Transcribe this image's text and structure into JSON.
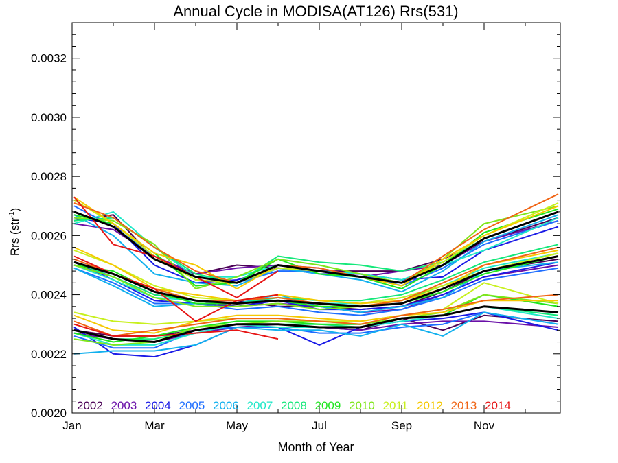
{
  "chart_data": {
    "type": "line",
    "title": "Annual Cycle in MODISA(AT126) Rrs(531)",
    "xlabel": "Month of Year",
    "ylabel_main": "Rrs (str",
    "ylabel_sup": "-1",
    "ylabel_close": ")",
    "xlim": [
      0.0,
      11.85
    ],
    "ylim": [
      0.002,
      0.00332
    ],
    "x_ticks": [
      {
        "value": 0,
        "label": "Jan"
      },
      {
        "value": 2,
        "label": "Mar"
      },
      {
        "value": 4,
        "label": "May"
      },
      {
        "value": 6,
        "label": "Jul"
      },
      {
        "value": 8,
        "label": "Sep"
      },
      {
        "value": 10,
        "label": "Nov"
      }
    ],
    "y_ticks": [
      {
        "value": 0.002,
        "label": "0.0020"
      },
      {
        "value": 0.0022,
        "label": "0.0022"
      },
      {
        "value": 0.0024,
        "label": "0.0024"
      },
      {
        "value": 0.0026,
        "label": "0.0026"
      },
      {
        "value": 0.0028,
        "label": "0.0028"
      },
      {
        "value": 0.003,
        "label": "0.0030"
      },
      {
        "value": 0.0032,
        "label": "0.0032"
      }
    ],
    "x": [
      0.05,
      1,
      2,
      3,
      4,
      5,
      6,
      7,
      8,
      9,
      10,
      11.8
    ],
    "legend": {
      "placement": "bottom-left inside plot"
    },
    "series": [
      {
        "name": "2002",
        "color": "#4a0055",
        "groups": [
          [
            0.00265,
            0.00267,
            0.00252,
            0.00247,
            0.0025,
            0.00249,
            0.00248,
            0.00248,
            0.00248,
            0.00252,
            0.00258,
            0.00266
          ],
          [
            0.0025,
            0.00246,
            0.0024,
            0.00238,
            0.00238,
            0.00236,
            0.00236,
            0.00235,
            0.00236,
            0.00241,
            0.00248,
            0.00252
          ],
          [
            0.00228,
            0.00226,
            0.00226,
            0.00228,
            0.0023,
            0.0023,
            0.00229,
            0.00228,
            0.00232,
            0.00228,
            0.00233,
            0.00231
          ]
        ]
      },
      {
        "name": "2003",
        "color": "#6a10a8",
        "groups": [
          [
            0.00264,
            0.00262,
            0.00253,
            0.00247,
            0.00249,
            0.0025,
            0.00249,
            0.00246,
            0.00248,
            0.0025,
            0.00258,
            0.00265
          ],
          [
            0.0025,
            0.00247,
            0.00242,
            0.00238,
            0.00236,
            0.00237,
            0.00236,
            0.00234,
            0.00235,
            0.0024,
            0.00246,
            0.0025
          ],
          [
            0.00227,
            0.00225,
            0.00224,
            0.00227,
            0.00229,
            0.0023,
            0.00229,
            0.00228,
            0.0023,
            0.00231,
            0.00231,
            0.00229
          ]
        ]
      },
      {
        "name": "2004",
        "color": "#1a1ae6",
        "groups": [
          [
            0.00266,
            0.00264,
            0.0025,
            0.00244,
            0.00245,
            0.00249,
            0.00247,
            0.00247,
            0.00245,
            0.00246,
            0.00255,
            0.00263
          ],
          [
            0.00251,
            0.00245,
            0.00238,
            0.00237,
            0.00236,
            0.00238,
            0.00235,
            0.00235,
            0.00236,
            0.0024,
            0.00246,
            0.00251
          ],
          [
            0.00229,
            0.0022,
            0.00219,
            0.00223,
            0.00229,
            0.00229,
            0.00223,
            0.00229,
            0.00231,
            0.00232,
            0.00234,
            0.00228
          ]
        ]
      },
      {
        "name": "2005",
        "color": "#1e6eff",
        "groups": [
          [
            0.0027,
            0.00263,
            0.00253,
            0.00245,
            0.00244,
            0.00248,
            0.00248,
            0.00247,
            0.00243,
            0.00249,
            0.00257,
            0.00265
          ],
          [
            0.00249,
            0.00244,
            0.00237,
            0.00237,
            0.00235,
            0.00236,
            0.00234,
            0.00233,
            0.00235,
            0.00239,
            0.00245,
            0.00249
          ],
          [
            0.00226,
            0.00222,
            0.00222,
            0.00228,
            0.00229,
            0.00229,
            0.00227,
            0.00227,
            0.00229,
            0.0023,
            0.00234,
            0.0023
          ]
        ]
      },
      {
        "name": "2006",
        "color": "#12b0ee",
        "groups": [
          [
            0.00267,
            0.0026,
            0.00247,
            0.00244,
            0.00243,
            0.00249,
            0.00247,
            0.00245,
            0.00241,
            0.00248,
            0.00258,
            0.00267
          ],
          [
            0.00249,
            0.00243,
            0.00236,
            0.00237,
            0.00237,
            0.0024,
            0.00236,
            0.00234,
            0.00236,
            0.00239,
            0.00248,
            0.00251
          ],
          [
            0.0022,
            0.00221,
            0.00221,
            0.00223,
            0.00229,
            0.00228,
            0.00228,
            0.00226,
            0.0023,
            0.00226,
            0.00234,
            0.0023
          ]
        ]
      },
      {
        "name": "2007",
        "color": "#20e8c8",
        "groups": [
          [
            0.00264,
            0.00268,
            0.00256,
            0.00246,
            0.00246,
            0.0025,
            0.00248,
            0.00247,
            0.00245,
            0.0025,
            0.00255,
            0.00266
          ],
          [
            0.0025,
            0.00245,
            0.00239,
            0.00238,
            0.00237,
            0.00239,
            0.00237,
            0.00237,
            0.00239,
            0.00243,
            0.00249,
            0.00254
          ],
          [
            0.00227,
            0.00223,
            0.00223,
            0.00227,
            0.0023,
            0.00229,
            0.00229,
            0.00229,
            0.00231,
            0.00233,
            0.00236,
            0.00232
          ]
        ]
      },
      {
        "name": "2008",
        "color": "#14e87a",
        "groups": [
          [
            0.00265,
            0.00266,
            0.00256,
            0.00247,
            0.00244,
            0.00253,
            0.00251,
            0.0025,
            0.00248,
            0.00251,
            0.00259,
            0.00268
          ],
          [
            0.00251,
            0.00246,
            0.0024,
            0.00238,
            0.00237,
            0.00239,
            0.00238,
            0.00238,
            0.0024,
            0.00245,
            0.00251,
            0.00257
          ],
          [
            0.00228,
            0.00225,
            0.00225,
            0.00228,
            0.0023,
            0.0023,
            0.0023,
            0.00229,
            0.00232,
            0.00233,
            0.00236,
            0.00233
          ]
        ]
      },
      {
        "name": "2009",
        "color": "#1ee61e",
        "groups": [
          [
            0.00267,
            0.00264,
            0.00254,
            0.00243,
            0.00244,
            0.00252,
            0.00247,
            0.00246,
            0.00242,
            0.0025,
            0.00261,
            0.00269
          ],
          [
            0.0025,
            0.00248,
            0.00241,
            0.00237,
            0.00237,
            0.00238,
            0.00236,
            0.00236,
            0.00237,
            0.00241,
            0.00247,
            0.00253
          ],
          [
            0.00227,
            0.00224,
            0.00226,
            0.00229,
            0.00231,
            0.00231,
            0.0023,
            0.0023,
            0.00232,
            0.00233,
            0.0024,
            0.00236
          ]
        ]
      },
      {
        "name": "2010",
        "color": "#7ee61a",
        "groups": [
          [
            0.00266,
            0.00265,
            0.00257,
            0.00242,
            0.00246,
            0.00252,
            0.0025,
            0.00247,
            0.00244,
            0.00252,
            0.00264,
            0.0027
          ],
          [
            0.0025,
            0.00246,
            0.00239,
            0.00236,
            0.00236,
            0.00237,
            0.00235,
            0.00236,
            0.00238,
            0.00243,
            0.00248,
            0.00254
          ],
          [
            0.00225,
            0.00223,
            0.00224,
            0.00229,
            0.0023,
            0.00231,
            0.00231,
            0.0023,
            0.00232,
            0.00234,
            0.0024,
            0.00237
          ]
        ]
      },
      {
        "name": "2011",
        "color": "#c8f01e",
        "groups": [
          [
            0.00272,
            0.00264,
            0.00253,
            0.00245,
            0.00244,
            0.00249,
            0.00248,
            0.00246,
            0.00244,
            0.00251,
            0.0026,
            0.00271
          ],
          [
            0.00255,
            0.0025,
            0.00243,
            0.00239,
            0.00238,
            0.0024,
            0.00238,
            0.00237,
            0.00239,
            0.00243,
            0.00248,
            0.00254
          ],
          [
            0.00234,
            0.00231,
            0.0023,
            0.00231,
            0.00232,
            0.00232,
            0.00231,
            0.00231,
            0.00233,
            0.00235,
            0.00244,
            0.00237
          ]
        ]
      },
      {
        "name": "2012",
        "color": "#f5c800",
        "groups": [
          [
            0.00273,
            0.00264,
            0.00254,
            0.0025,
            0.00242,
            0.0025,
            0.00248,
            0.00246,
            0.00243,
            0.00252,
            0.0026,
            0.0027
          ],
          [
            0.00256,
            0.0025,
            0.00242,
            0.0024,
            0.00238,
            0.0024,
            0.00238,
            0.00237,
            0.00238,
            0.00242,
            0.0025,
            0.00255
          ],
          [
            0.00233,
            0.00228,
            0.00227,
            0.00231,
            0.00233,
            0.00233,
            0.00232,
            0.00231,
            0.00233,
            0.00234,
            0.00238,
            0.00238
          ]
        ]
      },
      {
        "name": "2013",
        "color": "#f06414",
        "groups": [
          [
            0.00271,
            0.00266,
            0.00256,
            0.00248,
            0.00244,
            0.0025,
            0.00249,
            0.00246,
            0.00244,
            0.00253,
            0.00262,
            0.00274
          ],
          [
            0.00252,
            0.00247,
            0.00242,
            0.00238,
            0.00238,
            0.00239,
            0.00237,
            0.00236,
            0.00238,
            0.00244,
            0.0025,
            0.00256
          ],
          [
            0.00231,
            0.00226,
            0.00228,
            0.0023,
            0.00232,
            0.00232,
            0.00231,
            0.0023,
            0.00233,
            0.00235,
            0.00238,
            0.0024
          ]
        ]
      },
      {
        "name": "2014",
        "color": "#e61414",
        "groups": [
          [
            0.00273,
            0.00257,
            0.00253,
            0.00246,
            0.00239,
            0.00248
          ],
          [
            0.00253,
            0.00247,
            0.00242,
            0.00231,
            0.00238,
            0.0024
          ],
          [
            0.0023,
            0.00226,
            0.00226,
            0.00227,
            0.00228,
            0.00225
          ]
        ]
      }
    ],
    "mean_series": {
      "color": "#000000",
      "groups": [
        [
          0.00268,
          0.00263,
          0.00252,
          0.00246,
          0.00244,
          0.0025,
          0.00248,
          0.00246,
          0.00244,
          0.0025,
          0.00259,
          0.00268
        ],
        [
          0.00251,
          0.00247,
          0.00241,
          0.00238,
          0.00237,
          0.00238,
          0.00237,
          0.00236,
          0.00237,
          0.00242,
          0.00248,
          0.00253
        ],
        [
          0.00228,
          0.00225,
          0.00224,
          0.00228,
          0.0023,
          0.0023,
          0.00229,
          0.00229,
          0.00232,
          0.00233,
          0.00236,
          0.00234
        ]
      ]
    }
  }
}
